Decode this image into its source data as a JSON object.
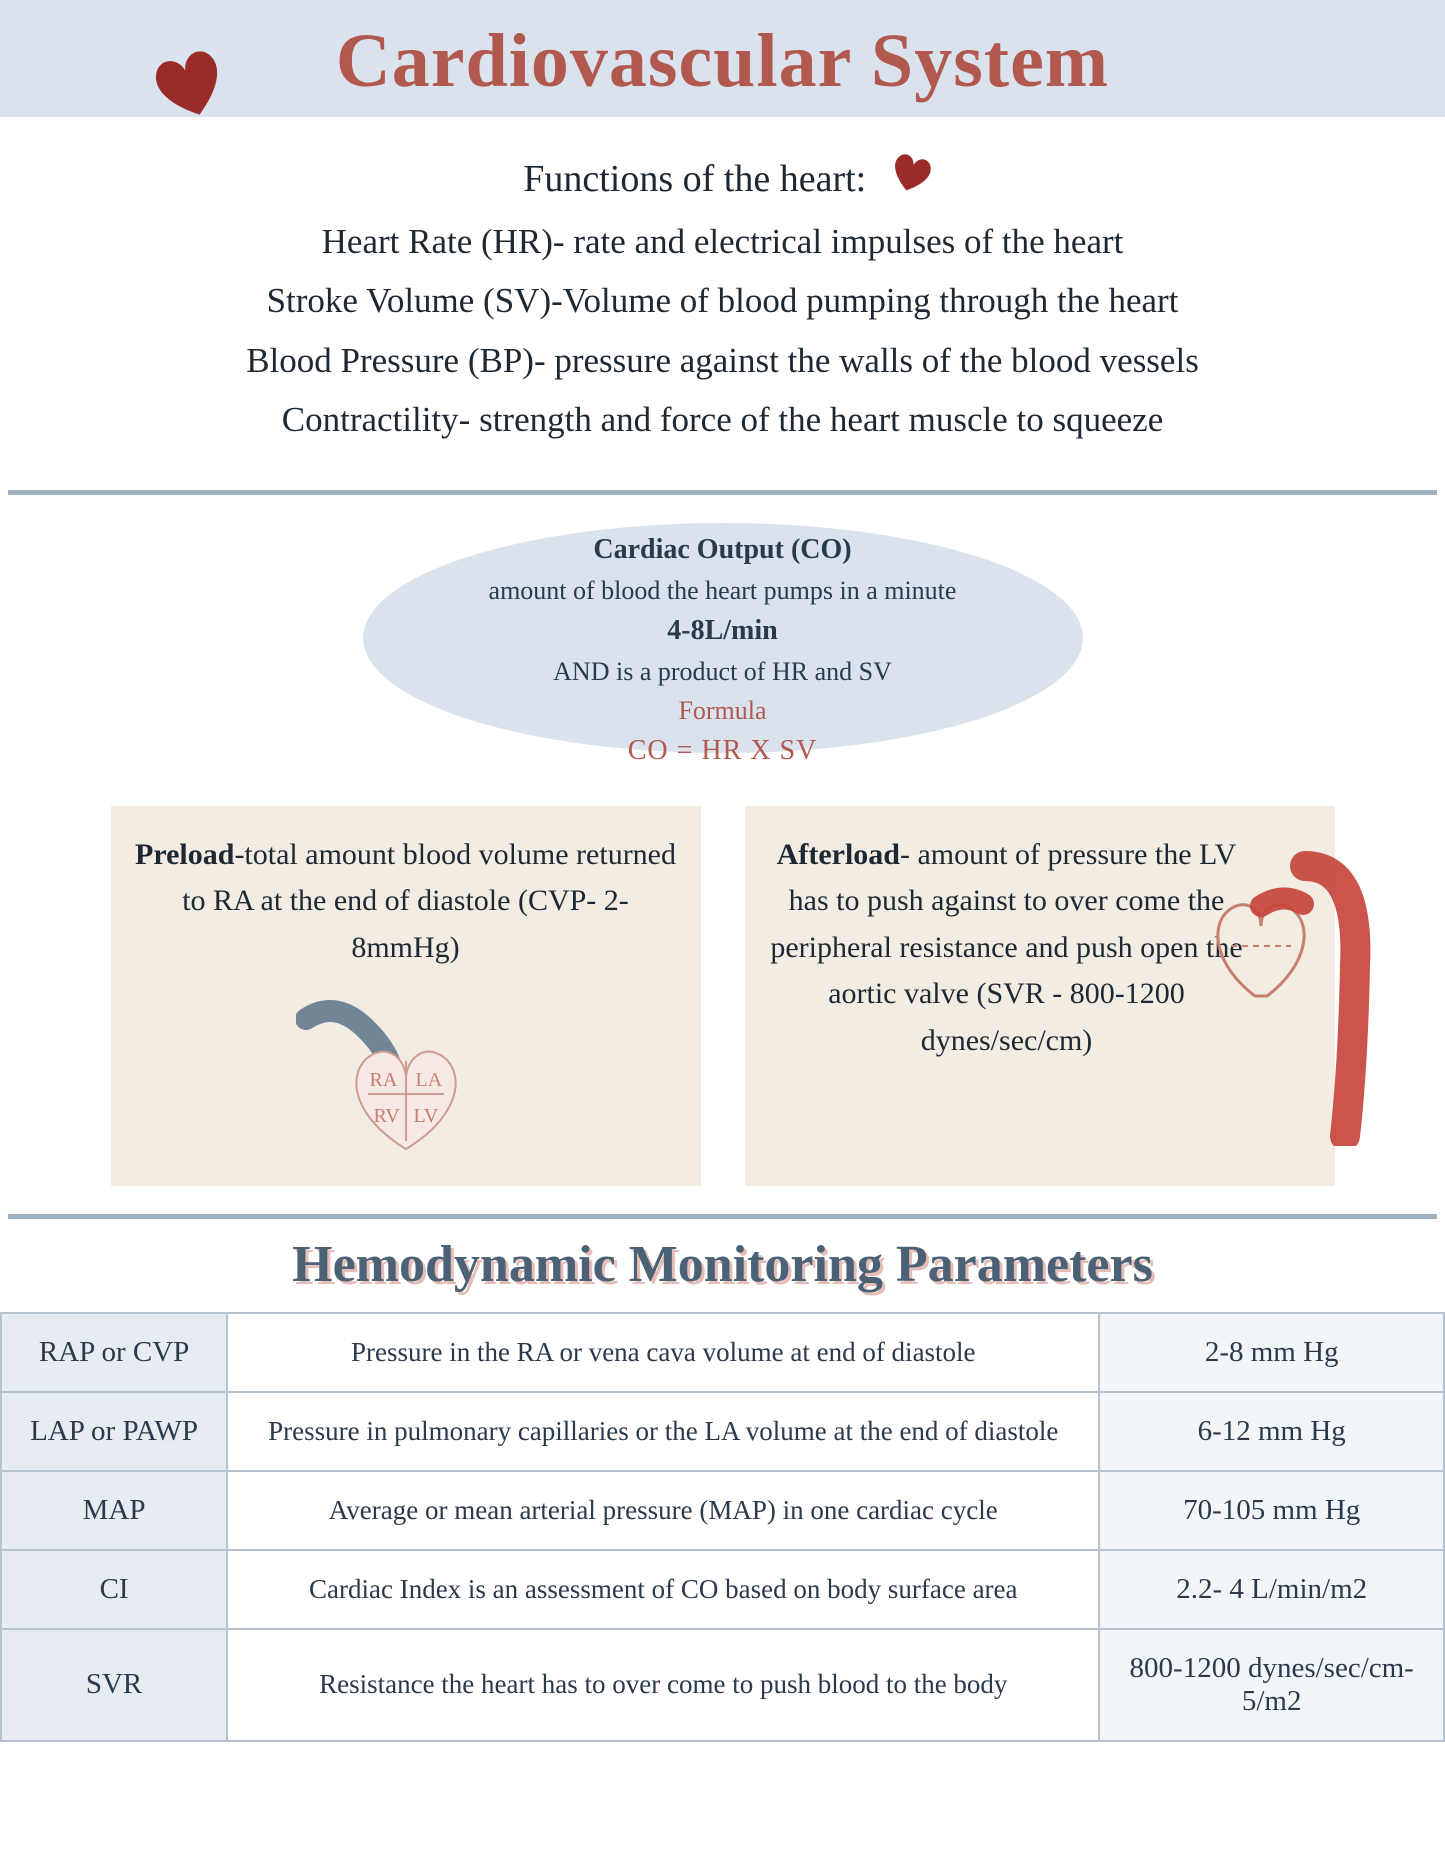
{
  "title": "Cardiovascular System",
  "colors": {
    "title": "#b1594e",
    "band": "#dae3ed",
    "text": "#2b3a4a",
    "card": "#f2ece2",
    "divider": "#9fb0bf",
    "heart_dark": "#992c28",
    "heart_red": "#c54338",
    "border": "#b6c2cd",
    "shadow": "#e6bcb6"
  },
  "functions": {
    "heading": "Functions of the heart:",
    "items": [
      "Heart Rate (HR)- rate and electrical impulses of the heart",
      "Stroke Volume (SV)-Volume of blood pumping through the heart",
      "Blood Pressure (BP)- pressure against the walls of the blood vessels",
      "Contractility- strength and force of the heart muscle to squeeze"
    ]
  },
  "cardiac_output": {
    "title": "Cardiac Output (CO)",
    "subtitle": "amount of blood the heart pumps in a minute",
    "range": "4-8L/min",
    "note": "AND is a product of HR and SV",
    "formula_label": "Formula",
    "formula": "CO = HR X SV"
  },
  "preload": {
    "label": "Preload",
    "text": "-total amount blood volume returned to RA at the end of diastole  (CVP- 2-8mmHg)",
    "chambers": {
      "ra": "RA",
      "la": "LA",
      "rv": "RV",
      "lv": "LV"
    }
  },
  "afterload": {
    "label": "Afterload",
    "text": "- amount of pressure the LV has to push against to over come the peripheral resistance and push open the aortic valve (SVR - 800-1200 dynes/sec/cm)"
  },
  "params_title": "Hemodynamic Monitoring Parameters",
  "params": [
    {
      "name": "RAP or CVP",
      "desc": "Pressure in the RA or vena cava volume at end of diastole",
      "range": "2-8 mm Hg"
    },
    {
      "name": "LAP or PAWP",
      "desc": "Pressure in pulmonary capillaries or the LA volume at the end of diastole",
      "range": "6-12 mm Hg"
    },
    {
      "name": "MAP",
      "desc": "Average or mean arterial pressure (MAP) in one cardiac cycle",
      "range": "70-105 mm Hg"
    },
    {
      "name": "CI",
      "desc": "Cardiac Index is an assessment of CO based on body surface area",
      "range": "2.2- 4 L/min/m2"
    },
    {
      "name": "SVR",
      "desc": "Resistance the heart has to over come to push blood to the body",
      "range": "800-1200 dynes/sec/cm-5/m2"
    }
  ]
}
